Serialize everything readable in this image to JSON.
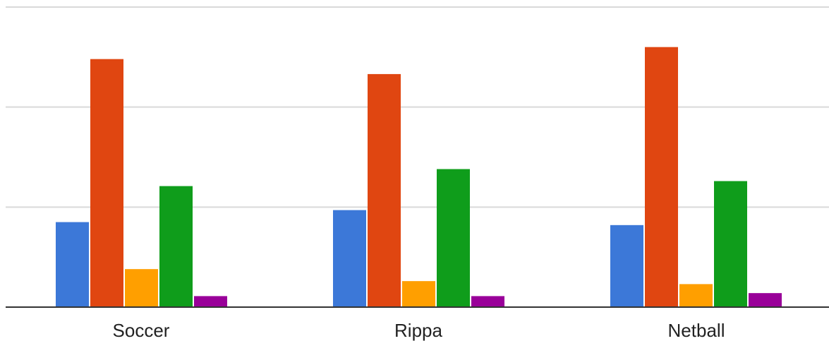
{
  "chart_data": {
    "type": "bar",
    "title": "",
    "xlabel": "",
    "ylabel": "",
    "categories": [
      "Soccer",
      "Rippa",
      "Netball"
    ],
    "ylim": [
      0,
      30
    ],
    "gridlines": [
      10,
      20,
      30
    ],
    "grid": true,
    "legend": "none",
    "series": [
      {
        "color": "#3c78d8",
        "values": [
          8.5,
          9.7,
          8.2
        ]
      },
      {
        "color": "#e04611",
        "values": [
          24.8,
          23.3,
          26.0
        ]
      },
      {
        "color": "#ff9f00",
        "values": [
          3.8,
          2.6,
          2.3
        ]
      },
      {
        "color": "#0f9d1b",
        "values": [
          12.1,
          13.8,
          12.6
        ]
      },
      {
        "color": "#990099",
        "values": [
          1.1,
          1.1,
          1.4
        ]
      }
    ]
  }
}
